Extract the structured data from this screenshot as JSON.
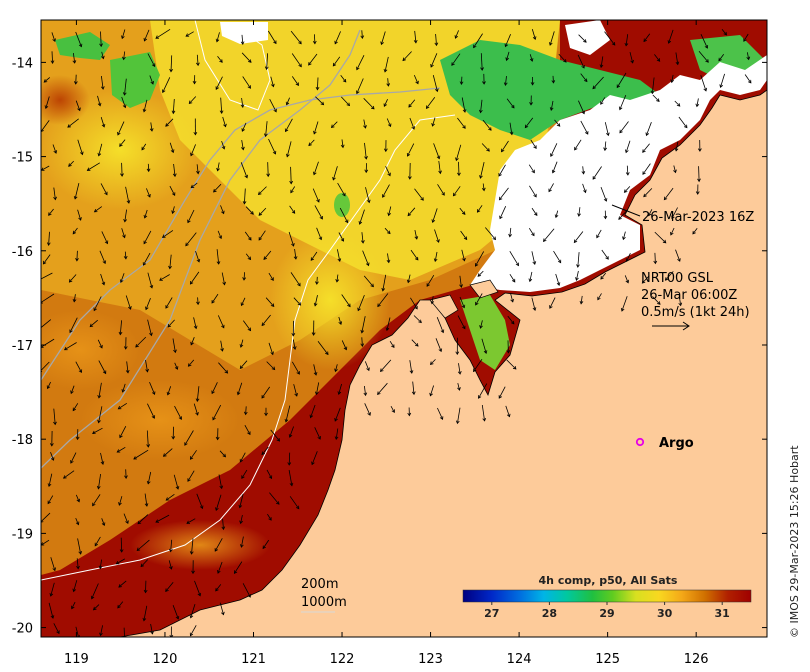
{
  "map": {
    "lon_ticks": [
      "119",
      "120",
      "121",
      "122",
      "123",
      "124",
      "125",
      "126"
    ],
    "lat_ticks": [
      "-14",
      "-15",
      "-16",
      "-17",
      "-18",
      "-19",
      "-20"
    ],
    "lon_range": [
      118.6,
      126.8
    ],
    "lat_range": [
      -13.55,
      -20.1
    ]
  },
  "annotations": {
    "pass_time": "26-Mar-2023 16Z",
    "current_model": "NRT00 GSL",
    "current_time": "26-Mar 06:00Z",
    "vector_scale": "0.5m/s (1kt 24h)",
    "argo_label": "Argo",
    "contour_200": "200m",
    "contour_1000": "1000m"
  },
  "colorbar": {
    "title": "4h comp, p50, All Sats",
    "ticks": [
      "27",
      "28",
      "29",
      "30",
      "31"
    ],
    "range": [
      26.5,
      31.5
    ]
  },
  "credit": "© IMOS 29-Mar-2023 15:26 Hobart",
  "colors": {
    "land": "#fdcb9a",
    "cloud": "#ffffff",
    "sst_warm": "#a00c00",
    "sst_mid": "#e8a21a",
    "sst_cool": "#f3df2c",
    "sst_cooler": "#44c64a",
    "argo": "#e600e6"
  }
}
